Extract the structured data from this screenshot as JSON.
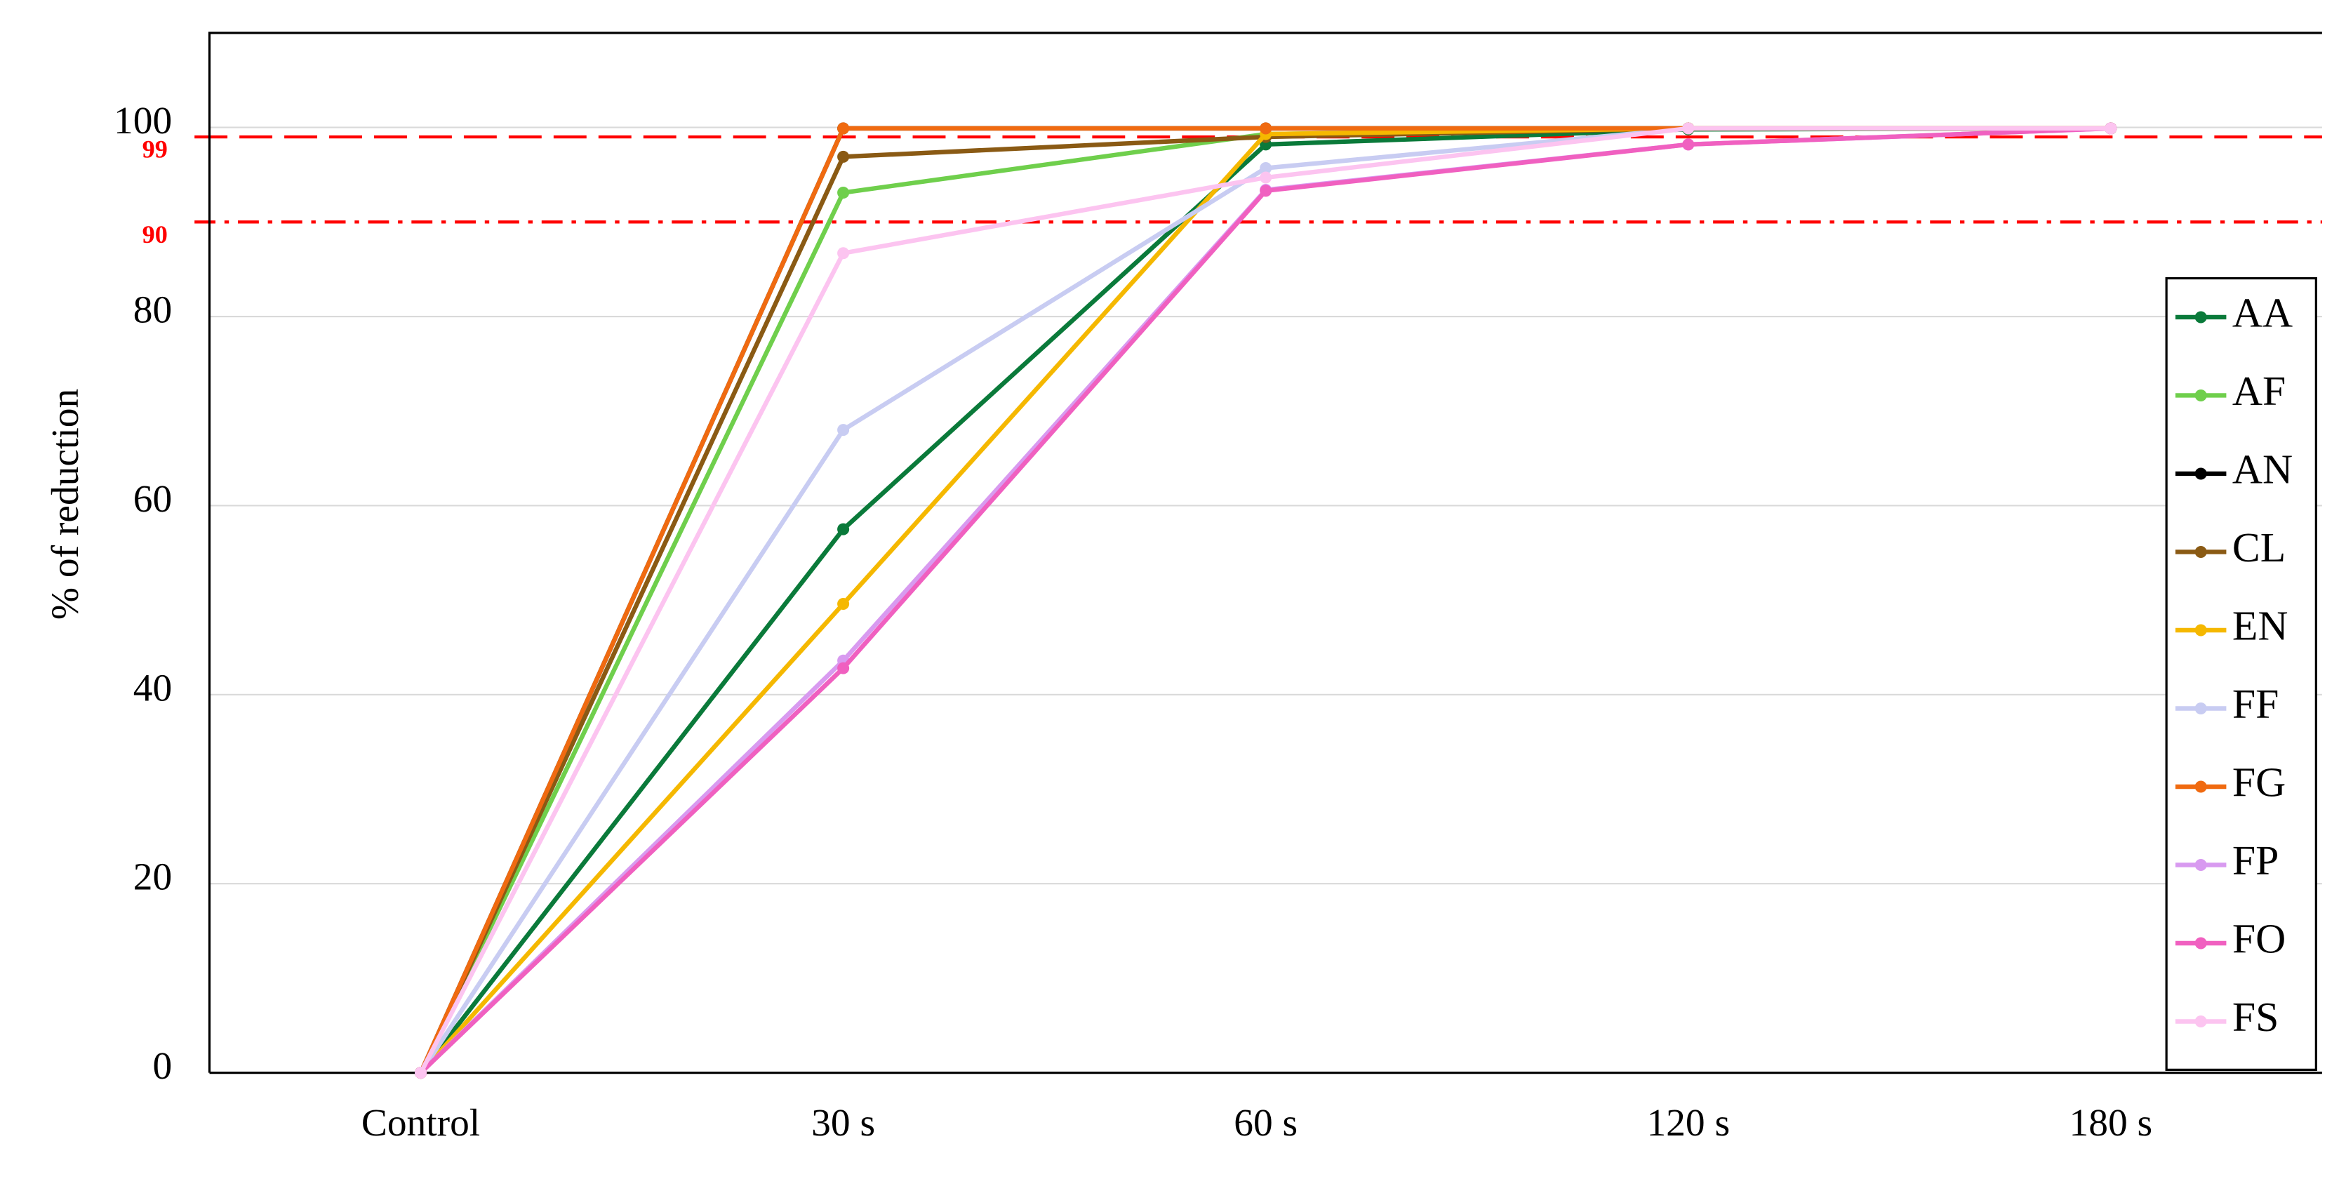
{
  "chart_data": {
    "type": "line",
    "y_label": "% of reduction",
    "categories": [
      "Control",
      "30 s",
      "60 s",
      "120 s",
      "180 s"
    ],
    "series": [
      {
        "name": "AA",
        "color": "#0a7a3a",
        "values": [
          0,
          57.5,
          98.2,
          99.8,
          99.9
        ]
      },
      {
        "name": "AF",
        "color": "#6fcf4c",
        "values": [
          0,
          93.1,
          99.3,
          99.9,
          99.9
        ]
      },
      {
        "name": "AN",
        "color": "#000000",
        "values": [
          0,
          99.9,
          99.9,
          99.9,
          99.9
        ]
      },
      {
        "name": "CL",
        "color": "#8a5a14",
        "values": [
          0,
          96.9,
          99.0,
          99.9,
          99.9
        ]
      },
      {
        "name": "EN",
        "color": "#f5b800",
        "values": [
          0,
          49.6,
          99.3,
          99.9,
          99.9
        ]
      },
      {
        "name": "FF",
        "color": "#c8ccf2",
        "values": [
          0,
          68,
          95.7,
          99.9,
          99.9
        ]
      },
      {
        "name": "FG",
        "color": "#f06a10",
        "values": [
          0,
          99.9,
          99.9,
          99.9,
          99.9
        ]
      },
      {
        "name": "FP",
        "color": "#d89af0",
        "values": [
          0,
          43.6,
          93.4,
          98.2,
          99.9
        ]
      },
      {
        "name": "FO",
        "color": "#f060c0",
        "values": [
          0,
          42.8,
          93.3,
          98.2,
          99.9
        ]
      },
      {
        "name": "FS",
        "color": "#fcc4f0",
        "values": [
          0,
          86.7,
          94.7,
          99.9,
          99.9
        ]
      }
    ],
    "ylim": [
      0,
      110
    ],
    "yticks": [
      0,
      20,
      40,
      60,
      80,
      100
    ],
    "grid": true,
    "reference_lines": [
      {
        "value": 99,
        "color": "#ff0000",
        "dash": "dashed"
      },
      {
        "value": 90,
        "color": "#ff0000",
        "dash": "dashdot"
      }
    ],
    "legend": "right"
  }
}
